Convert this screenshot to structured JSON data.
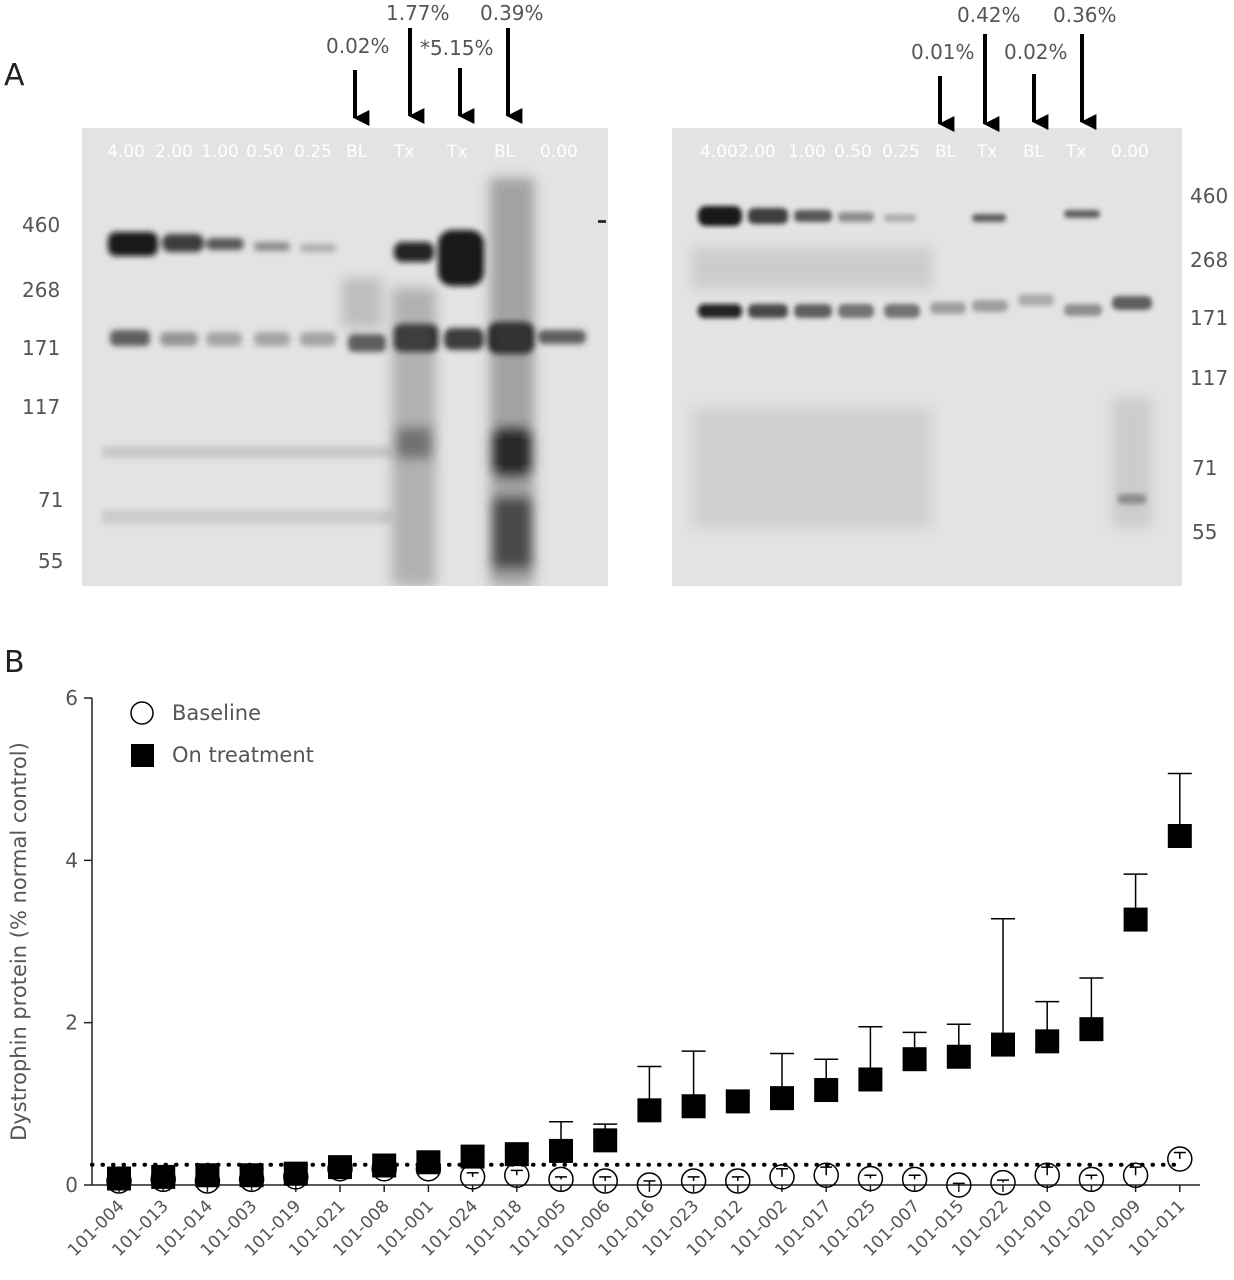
{
  "panel_a": {
    "letter": "A",
    "left_blot": {
      "lane_labels": [
        "4.00",
        "2.00",
        "1.00",
        "0.50",
        "0.25",
        "BL",
        "Tx",
        "Tx",
        "BL",
        "0.00"
      ],
      "mw_markers": [
        "460",
        "268",
        "171",
        "117",
        "71",
        "55"
      ],
      "annotations": [
        "0.02%",
        "1.77%",
        "*5.15%",
        "0.39%"
      ]
    },
    "right_blot": {
      "lane_labels": [
        "4.002.00",
        "1.00",
        "0.50",
        "0.25",
        "BL",
        "Tx",
        "BL",
        "Tx",
        "0.00"
      ],
      "mw_markers": [
        "460",
        "268",
        "171",
        "117",
        "71",
        "55"
      ],
      "annotations": [
        "0.01%",
        "0.42%",
        "0.02%",
        "0.36%"
      ]
    }
  },
  "panel_b": {
    "letter": "B"
  },
  "chart_data": {
    "type": "scatter",
    "ylabel": "Dystrophin protein (% normal control)",
    "ylim": [
      0,
      6
    ],
    "yticks": [
      "0",
      "2",
      "4",
      "6"
    ],
    "reference_line": 0.25,
    "categories": [
      "101-004",
      "101-013",
      "101-014",
      "101-003",
      "101-019",
      "101-021",
      "101-008",
      "101-001",
      "101-024",
      "101-018",
      "101-005",
      "101-006",
      "101-016",
      "101-023",
      "101-012",
      "101-002",
      "101-017",
      "101-025",
      "101-007",
      "101-015",
      "101-022",
      "101-010",
      "101-020",
      "101-009",
      "101-011"
    ],
    "series": [
      {
        "name": "Baseline",
        "marker": "open-circle",
        "values": [
          0.05,
          0.07,
          0.05,
          0.07,
          0.1,
          0.2,
          0.2,
          0.2,
          0.1,
          0.12,
          0.07,
          0.05,
          0.0,
          0.05,
          0.05,
          0.1,
          0.12,
          0.08,
          0.07,
          0.0,
          0.03,
          0.12,
          0.07,
          0.12,
          0.32
        ],
        "error_upper": [
          0.05,
          0.07,
          0.05,
          0.07,
          0.1,
          0.2,
          0.2,
          0.2,
          0.15,
          0.18,
          0.1,
          0.1,
          0.05,
          0.1,
          0.1,
          0.2,
          0.22,
          0.12,
          0.12,
          0.02,
          0.06,
          0.22,
          0.12,
          0.22,
          0.4
        ]
      },
      {
        "name": "On treatment",
        "marker": "filled-square",
        "values": [
          0.08,
          0.1,
          0.12,
          0.12,
          0.14,
          0.22,
          0.24,
          0.28,
          0.35,
          0.38,
          0.42,
          0.55,
          0.92,
          0.97,
          1.03,
          1.07,
          1.17,
          1.3,
          1.55,
          1.58,
          1.73,
          1.77,
          1.92,
          3.27,
          4.3
        ],
        "error_upper": [
          0.1,
          0.12,
          0.2,
          0.2,
          0.24,
          0.26,
          0.28,
          0.34,
          0.4,
          0.43,
          0.78,
          0.75,
          1.46,
          1.65,
          1.1,
          1.62,
          1.55,
          1.95,
          1.88,
          1.98,
          3.28,
          2.26,
          2.55,
          3.83,
          5.07
        ]
      }
    ],
    "legend": {
      "position": "top-left",
      "entries": [
        "Baseline",
        "On treatment"
      ]
    }
  },
  "colors": {
    "ink": "#000000",
    "axis": "#222222",
    "text": "#555555",
    "blot_bg": "#e3e3e3"
  }
}
